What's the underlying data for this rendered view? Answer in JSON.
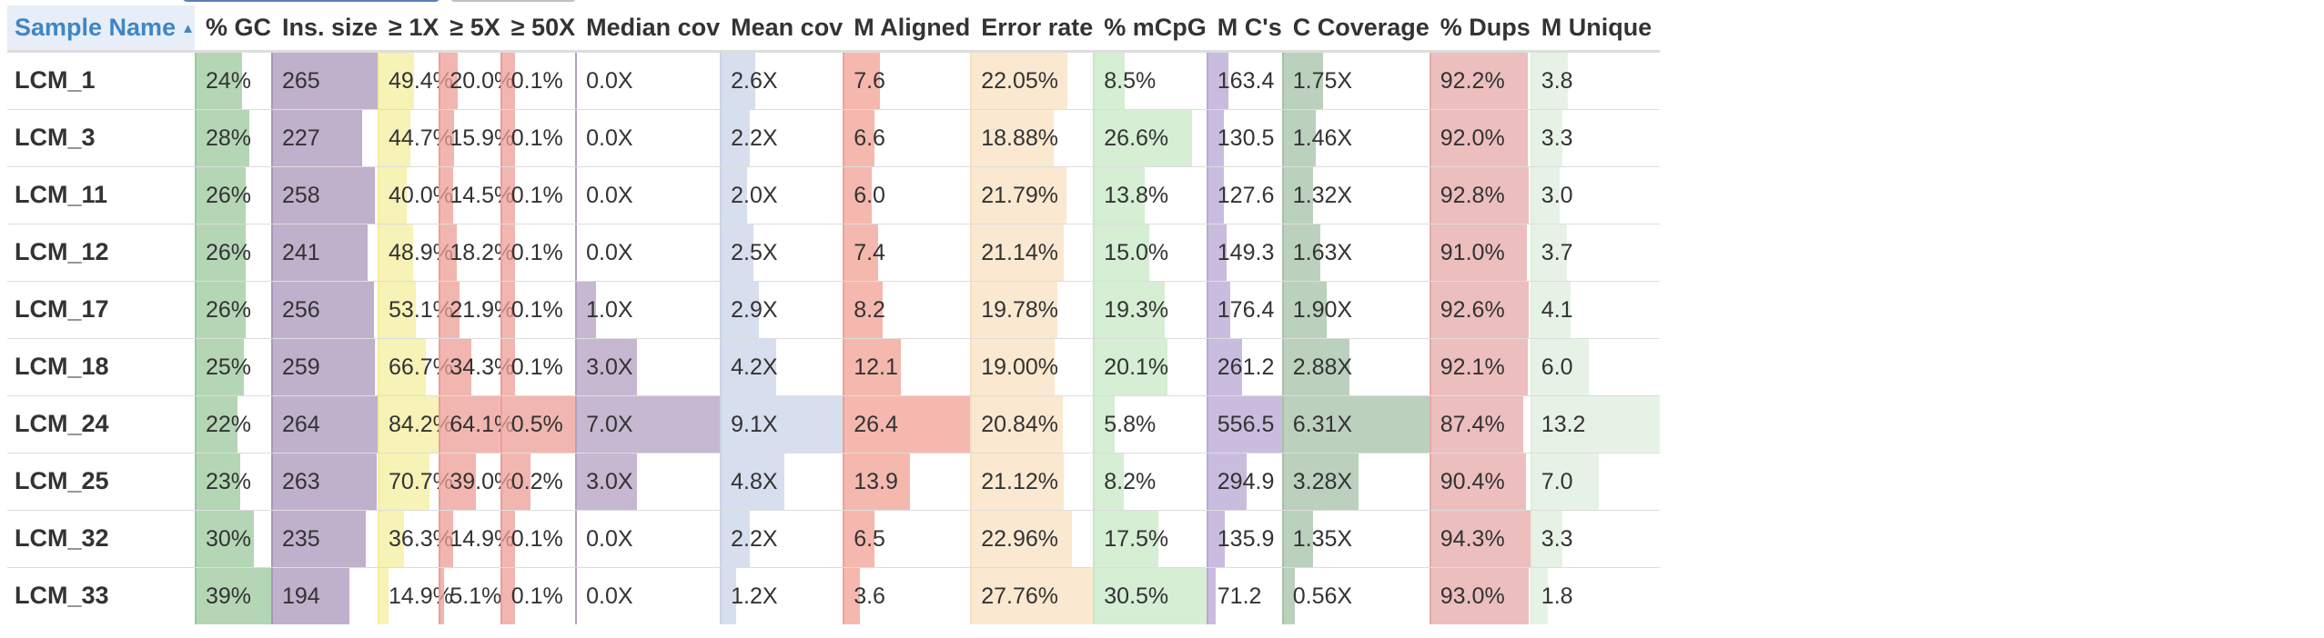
{
  "table": {
    "sort_icon": "sort-ascending-icon",
    "columns": [
      {
        "key": "sample",
        "label": "Sample Name",
        "color": ""
      },
      {
        "key": "gc",
        "label": "% GC",
        "color": "#9bc89c",
        "max": 39
      },
      {
        "key": "ins",
        "label": "Ins. size",
        "color": "#a996ba",
        "max": 265
      },
      {
        "key": "x1",
        "label": "≥ 1X",
        "color": "#f4ee9c",
        "max": 84.2
      },
      {
        "key": "x5",
        "label": "≥ 5X",
        "color": "#ee9d96",
        "max": 64.1
      },
      {
        "key": "x50",
        "label": "≥ 50X",
        "color": "#ee9d96",
        "max": 0.5
      },
      {
        "key": "medcov",
        "label": "Median cov",
        "color": "#b3a0c0",
        "max": 7.0
      },
      {
        "key": "meancov",
        "label": "Mean cov",
        "color": "#c9d3e8",
        "max": 9.1
      },
      {
        "key": "maligned",
        "label": "M Aligned",
        "color": "#f0a094",
        "max": 26.4
      },
      {
        "key": "err",
        "label": "Error rate",
        "color": "#fae0c0",
        "max": 27.76
      },
      {
        "key": "mcpg",
        "label": "% mCpG",
        "color": "#c7e8c5",
        "max": 30.5
      },
      {
        "key": "mcs",
        "label": "M C's",
        "color": "#b8a6d4",
        "max": 556.5
      },
      {
        "key": "ccov",
        "label": "C Coverage",
        "color": "#a4c2a8",
        "max": 6.31
      },
      {
        "key": "dups",
        "label": "% Dups",
        "color": "#e6a8a8",
        "max": 94.3
      },
      {
        "key": "uniq",
        "label": "M Unique",
        "color": "#dfeedd",
        "max": 13.2
      }
    ],
    "rows": [
      {
        "sample": "LCM_1",
        "gc": [
          "24%",
          24
        ],
        "ins": [
          "265",
          265
        ],
        "x1": [
          "49.4%",
          49.4
        ],
        "x5": [
          "20.0%",
          20.0
        ],
        "x50": [
          "0.1%",
          0.1
        ],
        "medcov": [
          "0.0X",
          0.0
        ],
        "meancov": [
          "2.6X",
          2.6
        ],
        "maligned": [
          "7.6",
          7.6
        ],
        "err": [
          "22.05%",
          22.05
        ],
        "mcpg": [
          "8.5%",
          8.5
        ],
        "mcs": [
          "163.4",
          163.4
        ],
        "ccov": [
          "1.75X",
          1.75
        ],
        "dups": [
          "92.2%",
          92.2
        ],
        "uniq": [
          "3.8",
          3.8
        ]
      },
      {
        "sample": "LCM_3",
        "gc": [
          "28%",
          28
        ],
        "ins": [
          "227",
          227
        ],
        "x1": [
          "44.7%",
          44.7
        ],
        "x5": [
          "15.9%",
          15.9
        ],
        "x50": [
          "0.1%",
          0.1
        ],
        "medcov": [
          "0.0X",
          0.0
        ],
        "meancov": [
          "2.2X",
          2.2
        ],
        "maligned": [
          "6.6",
          6.6
        ],
        "err": [
          "18.88%",
          18.88
        ],
        "mcpg": [
          "26.6%",
          26.6
        ],
        "mcs": [
          "130.5",
          130.5
        ],
        "ccov": [
          "1.46X",
          1.46
        ],
        "dups": [
          "92.0%",
          92.0
        ],
        "uniq": [
          "3.3",
          3.3
        ]
      },
      {
        "sample": "LCM_11",
        "gc": [
          "26%",
          26
        ],
        "ins": [
          "258",
          258
        ],
        "x1": [
          "40.0%",
          40.0
        ],
        "x5": [
          "14.5%",
          14.5
        ],
        "x50": [
          "0.1%",
          0.1
        ],
        "medcov": [
          "0.0X",
          0.0
        ],
        "meancov": [
          "2.0X",
          2.0
        ],
        "maligned": [
          "6.0",
          6.0
        ],
        "err": [
          "21.79%",
          21.79
        ],
        "mcpg": [
          "13.8%",
          13.8
        ],
        "mcs": [
          "127.6",
          127.6
        ],
        "ccov": [
          "1.32X",
          1.32
        ],
        "dups": [
          "92.8%",
          92.8
        ],
        "uniq": [
          "3.0",
          3.0
        ]
      },
      {
        "sample": "LCM_12",
        "gc": [
          "26%",
          26
        ],
        "ins": [
          "241",
          241
        ],
        "x1": [
          "48.9%",
          48.9
        ],
        "x5": [
          "18.2%",
          18.2
        ],
        "x50": [
          "0.1%",
          0.1
        ],
        "medcov": [
          "0.0X",
          0.0
        ],
        "meancov": [
          "2.5X",
          2.5
        ],
        "maligned": [
          "7.4",
          7.4
        ],
        "err": [
          "21.14%",
          21.14
        ],
        "mcpg": [
          "15.0%",
          15.0
        ],
        "mcs": [
          "149.3",
          149.3
        ],
        "ccov": [
          "1.63X",
          1.63
        ],
        "dups": [
          "91.0%",
          91.0
        ],
        "uniq": [
          "3.7",
          3.7
        ]
      },
      {
        "sample": "LCM_17",
        "gc": [
          "26%",
          26
        ],
        "ins": [
          "256",
          256
        ],
        "x1": [
          "53.1%",
          53.1
        ],
        "x5": [
          "21.9%",
          21.9
        ],
        "x50": [
          "0.1%",
          0.1
        ],
        "medcov": [
          "1.0X",
          1.0
        ],
        "meancov": [
          "2.9X",
          2.9
        ],
        "maligned": [
          "8.2",
          8.2
        ],
        "err": [
          "19.78%",
          19.78
        ],
        "mcpg": [
          "19.3%",
          19.3
        ],
        "mcs": [
          "176.4",
          176.4
        ],
        "ccov": [
          "1.90X",
          1.9
        ],
        "dups": [
          "92.6%",
          92.6
        ],
        "uniq": [
          "4.1",
          4.1
        ]
      },
      {
        "sample": "LCM_18",
        "gc": [
          "25%",
          25
        ],
        "ins": [
          "259",
          259
        ],
        "x1": [
          "66.7%",
          66.7
        ],
        "x5": [
          "34.3%",
          34.3
        ],
        "x50": [
          "0.1%",
          0.1
        ],
        "medcov": [
          "3.0X",
          3.0
        ],
        "meancov": [
          "4.2X",
          4.2
        ],
        "maligned": [
          "12.1",
          12.1
        ],
        "err": [
          "19.00%",
          19.0
        ],
        "mcpg": [
          "20.1%",
          20.1
        ],
        "mcs": [
          "261.2",
          261.2
        ],
        "ccov": [
          "2.88X",
          2.88
        ],
        "dups": [
          "92.1%",
          92.1
        ],
        "uniq": [
          "6.0",
          6.0
        ]
      },
      {
        "sample": "LCM_24",
        "gc": [
          "22%",
          22
        ],
        "ins": [
          "264",
          264
        ],
        "x1": [
          "84.2%",
          84.2
        ],
        "x5": [
          "64.1%",
          64.1
        ],
        "x50": [
          "0.5%",
          0.5
        ],
        "medcov": [
          "7.0X",
          7.0
        ],
        "meancov": [
          "9.1X",
          9.1
        ],
        "maligned": [
          "26.4",
          26.4
        ],
        "err": [
          "20.84%",
          20.84
        ],
        "mcpg": [
          "5.8%",
          5.8
        ],
        "mcs": [
          "556.5",
          556.5
        ],
        "ccov": [
          "6.31X",
          6.31
        ],
        "dups": [
          "87.4%",
          87.4
        ],
        "uniq": [
          "13.2",
          13.2
        ]
      },
      {
        "sample": "LCM_25",
        "gc": [
          "23%",
          23
        ],
        "ins": [
          "263",
          263
        ],
        "x1": [
          "70.7%",
          70.7
        ],
        "x5": [
          "39.0%",
          39.0
        ],
        "x50": [
          "0.2%",
          0.2
        ],
        "medcov": [
          "3.0X",
          3.0
        ],
        "meancov": [
          "4.8X",
          4.8
        ],
        "maligned": [
          "13.9",
          13.9
        ],
        "err": [
          "21.12%",
          21.12
        ],
        "mcpg": [
          "8.2%",
          8.2
        ],
        "mcs": [
          "294.9",
          294.9
        ],
        "ccov": [
          "3.28X",
          3.28
        ],
        "dups": [
          "90.4%",
          90.4
        ],
        "uniq": [
          "7.0",
          7.0
        ]
      },
      {
        "sample": "LCM_32",
        "gc": [
          "30%",
          30
        ],
        "ins": [
          "235",
          235
        ],
        "x1": [
          "36.3%",
          36.3
        ],
        "x5": [
          "14.9%",
          14.9
        ],
        "x50": [
          "0.1%",
          0.1
        ],
        "medcov": [
          "0.0X",
          0.0
        ],
        "meancov": [
          "2.2X",
          2.2
        ],
        "maligned": [
          "6.5",
          6.5
        ],
        "err": [
          "22.96%",
          22.96
        ],
        "mcpg": [
          "17.5%",
          17.5
        ],
        "mcs": [
          "135.9",
          135.9
        ],
        "ccov": [
          "1.35X",
          1.35
        ],
        "dups": [
          "94.3%",
          94.3
        ],
        "uniq": [
          "3.3",
          3.3
        ]
      },
      {
        "sample": "LCM_33",
        "gc": [
          "39%",
          39
        ],
        "ins": [
          "194",
          194
        ],
        "x1": [
          "14.9%",
          14.9
        ],
        "x5": [
          "5.1%",
          5.1
        ],
        "x50": [
          "0.1%",
          0.1
        ],
        "medcov": [
          "0.0X",
          0.0
        ],
        "meancov": [
          "1.2X",
          1.2
        ],
        "maligned": [
          "3.6",
          3.6
        ],
        "err": [
          "27.76%",
          27.76
        ],
        "mcpg": [
          "30.5%",
          30.5
        ],
        "mcs": [
          "71.2",
          71.2
        ],
        "ccov": [
          "0.56X",
          0.56
        ],
        "dups": [
          "93.0%",
          93.0
        ],
        "uniq": [
          "1.8",
          1.8
        ]
      }
    ]
  }
}
